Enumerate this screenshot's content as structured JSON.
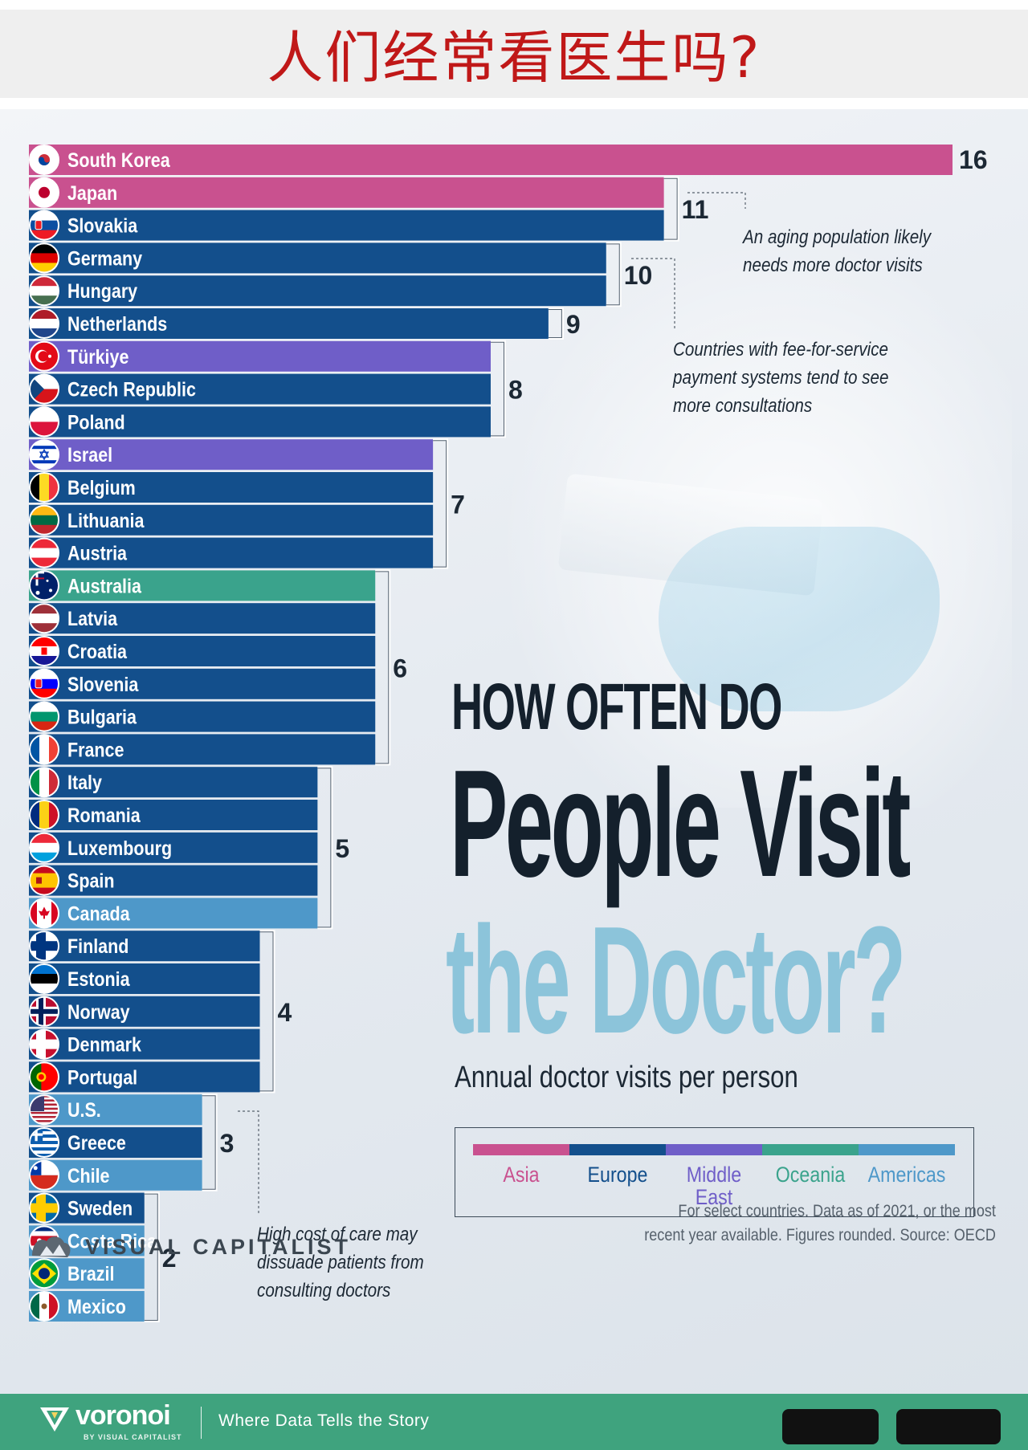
{
  "banner": {
    "title": "人们经常看医生吗?"
  },
  "infographic": {
    "title_line1": "HOW OFTEN DO",
    "title_line2": "People Visit",
    "title_line3": "the Doctor?",
    "subtitle": "Annual doctor visits per person",
    "footnote": "For select countries.  Data as of 2021, or the most\nrecent year available. Figures rounded. Source: OECD",
    "brand": "VISUAL CAPITALIST"
  },
  "legend": [
    {
      "name": "Asia",
      "color": "#c9518f"
    },
    {
      "name": "Europe",
      "color": "#134f8c"
    },
    {
      "name": "Middle East",
      "color": "#6f5ec8"
    },
    {
      "name": "Oceania",
      "color": "#3aa38c"
    },
    {
      "name": "Americas",
      "color": "#4e98c9"
    }
  ],
  "annotations": [
    "An aging population likely\nneeds more doctor visits",
    "Countries with fee-for-service\npayment systems tend to see\nmore consultations",
    "High cost of care may\ndissuade patients from\nconsulting doctors"
  ],
  "chart_data": {
    "type": "bar",
    "orientation": "horizontal",
    "xlim": [
      0,
      16
    ],
    "categories": [
      "South Korea",
      "Japan",
      "Slovakia",
      "Germany",
      "Hungary",
      "Netherlands",
      "Türkiye",
      "Czech Republic",
      "Poland",
      "Israel",
      "Belgium",
      "Lithuania",
      "Austria",
      "Australia",
      "Latvia",
      "Croatia",
      "Slovenia",
      "Bulgaria",
      "France",
      "Italy",
      "Romania",
      "Luxembourg",
      "Spain",
      "Canada",
      "Finland",
      "Estonia",
      "Norway",
      "Denmark",
      "Portugal",
      "U.S.",
      "Greece",
      "Chile",
      "Sweden",
      "Costa Rica",
      "Brazil",
      "Mexico"
    ],
    "values": [
      16,
      11,
      11,
      10,
      10,
      9,
      8,
      8,
      8,
      7,
      7,
      7,
      7,
      6,
      6,
      6,
      6,
      6,
      6,
      5,
      5,
      5,
      5,
      5,
      4,
      4,
      4,
      4,
      4,
      3,
      3,
      3,
      2,
      2,
      2,
      2
    ],
    "regions": [
      "Asia",
      "Asia",
      "Europe",
      "Europe",
      "Europe",
      "Europe",
      "Middle East",
      "Europe",
      "Europe",
      "Middle East",
      "Europe",
      "Europe",
      "Europe",
      "Oceania",
      "Europe",
      "Europe",
      "Europe",
      "Europe",
      "Europe",
      "Europe",
      "Europe",
      "Europe",
      "Europe",
      "Americas",
      "Europe",
      "Europe",
      "Europe",
      "Europe",
      "Europe",
      "Americas",
      "Europe",
      "Americas",
      "Europe",
      "Americas",
      "Americas",
      "Americas"
    ],
    "flags": [
      {
        "style": "kr"
      },
      {
        "style": "jp"
      },
      {
        "style": "h",
        "colors": [
          "#ffffff",
          "#0b4ea2",
          "#ee1c25"
        ],
        "icon": "shield"
      },
      {
        "style": "h",
        "colors": [
          "#000000",
          "#dd0000",
          "#ffce00"
        ]
      },
      {
        "style": "h",
        "colors": [
          "#ce2939",
          "#ffffff",
          "#477050"
        ]
      },
      {
        "style": "h",
        "colors": [
          "#ae1c28",
          "#ffffff",
          "#21468b"
        ]
      },
      {
        "style": "tr"
      },
      {
        "style": "cz"
      },
      {
        "style": "h",
        "colors": [
          "#ffffff",
          "#dc143c"
        ]
      },
      {
        "style": "il"
      },
      {
        "style": "v",
        "colors": [
          "#000000",
          "#fdda24",
          "#ef3340"
        ]
      },
      {
        "style": "h",
        "colors": [
          "#fdb913",
          "#006a44",
          "#c1272d"
        ]
      },
      {
        "style": "h",
        "colors": [
          "#ed2939",
          "#ffffff",
          "#ed2939"
        ]
      },
      {
        "style": "au"
      },
      {
        "style": "h",
        "colors": [
          "#9e3039",
          "#ffffff",
          "#9e3039"
        ]
      },
      {
        "style": "h",
        "colors": [
          "#ff0000",
          "#ffffff",
          "#171796"
        ],
        "icon": "check"
      },
      {
        "style": "h",
        "colors": [
          "#ffffff",
          "#0000ff",
          "#ff0000"
        ],
        "icon": "shield"
      },
      {
        "style": "h",
        "colors": [
          "#ffffff",
          "#00966e",
          "#d62612"
        ]
      },
      {
        "style": "v",
        "colors": [
          "#0055a4",
          "#ffffff",
          "#ef4135"
        ]
      },
      {
        "style": "v",
        "colors": [
          "#009246",
          "#ffffff",
          "#ce2b37"
        ]
      },
      {
        "style": "v",
        "colors": [
          "#002b7f",
          "#fcd116",
          "#ce1126"
        ]
      },
      {
        "style": "h",
        "colors": [
          "#ed2939",
          "#ffffff",
          "#00a1de"
        ]
      },
      {
        "style": "es"
      },
      {
        "style": "ca"
      },
      {
        "style": "nordic",
        "colors": [
          "#ffffff",
          "#003580"
        ]
      },
      {
        "style": "h",
        "colors": [
          "#0072ce",
          "#000000",
          "#ffffff"
        ]
      },
      {
        "style": "nordic",
        "colors": [
          "#ba0c2f",
          "#ffffff",
          "#00205b"
        ]
      },
      {
        "style": "nordic",
        "colors": [
          "#c8102e",
          "#ffffff"
        ]
      },
      {
        "style": "pt"
      },
      {
        "style": "us"
      },
      {
        "style": "gr"
      },
      {
        "style": "cl"
      },
      {
        "style": "nordic",
        "colors": [
          "#006aa7",
          "#fecc00"
        ]
      },
      {
        "style": "cr"
      },
      {
        "style": "br"
      },
      {
        "style": "v",
        "colors": [
          "#006847",
          "#ffffff",
          "#ce1126"
        ],
        "icon": "dot"
      }
    ],
    "group_labels": [
      "16",
      "11",
      "10",
      "9",
      "8",
      "7",
      "6",
      "5",
      "4",
      "3",
      "2"
    ]
  }
}
